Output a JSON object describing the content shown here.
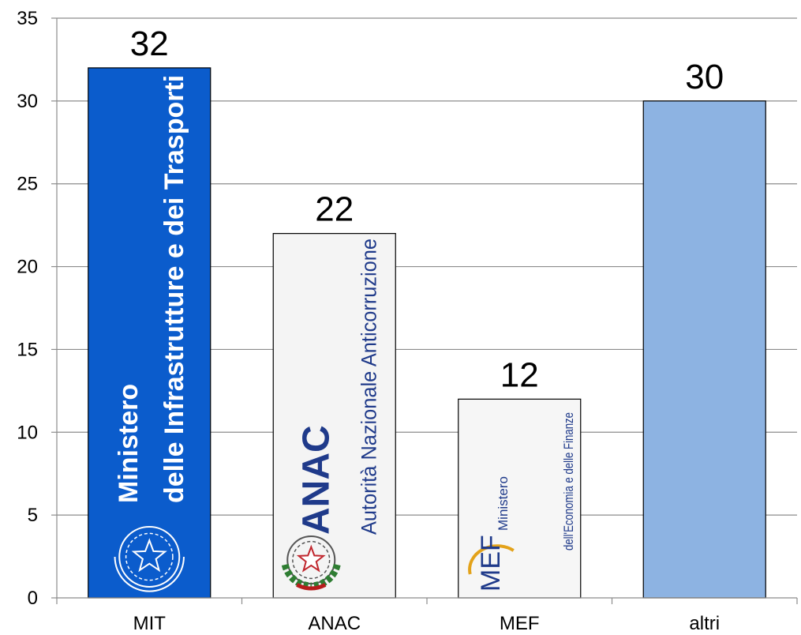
{
  "chart_data": {
    "type": "bar",
    "categories": [
      "MIT",
      "ANAC",
      "MEF",
      "altri"
    ],
    "values": [
      32,
      22,
      12,
      30
    ],
    "data_labels": [
      "32",
      "22",
      "12",
      "30"
    ],
    "title": "",
    "xlabel": "",
    "ylabel": "",
    "ylim": [
      0,
      35
    ],
    "yticks": [
      0,
      5,
      10,
      15,
      20,
      25,
      30,
      35
    ],
    "grid": true,
    "legend": "none",
    "colors": {
      "MIT": "#0b5ccc",
      "ANAC": "#f4f4f4",
      "MEF": "#f6f6f6",
      "altri": "#8db3e2"
    },
    "bar_logos": {
      "MIT": {
        "icon": "italian-emblem-icon",
        "lines": [
          "Ministero",
          "delle Infrastrutture e dei Trasporti"
        ]
      },
      "ANAC": {
        "icon": "italian-emblem-icon",
        "lines": [
          "ANAC",
          "Autorità Nazionale Anticorruzione"
        ]
      },
      "MEF": {
        "icon": "mef-logo-icon",
        "lines": [
          "Ministero",
          "dell'Economia e delle Finanze"
        ]
      }
    }
  }
}
